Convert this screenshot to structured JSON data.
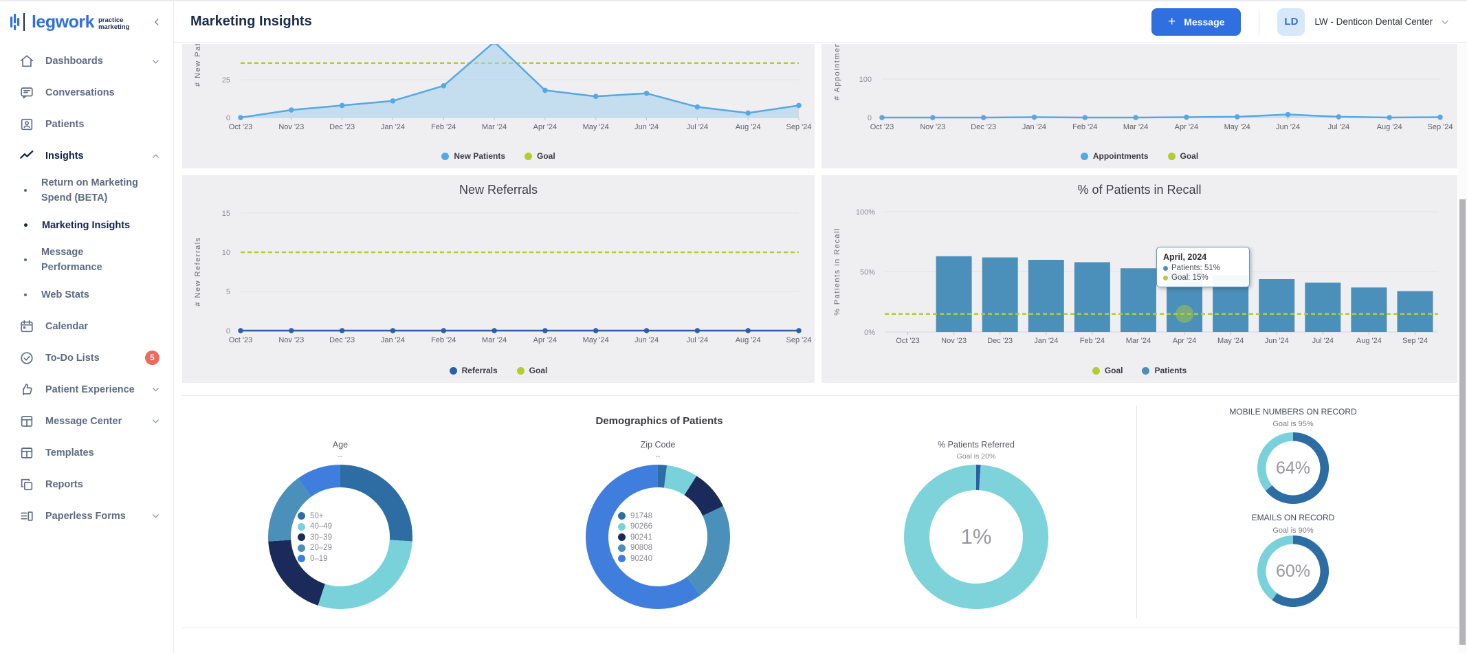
{
  "brand": {
    "name": "legwork",
    "tagline_line1": "practice",
    "tagline_line2": "marketing"
  },
  "header": {
    "title": "Marketing Insights",
    "message_button_plus": "+",
    "message_button": "Message",
    "account_initials": "LD",
    "account_name": "LW - Denticon Dental Center"
  },
  "sidebar": {
    "items": [
      {
        "label": "Dashboards",
        "icon": "home",
        "chevron": "down"
      },
      {
        "label": "Conversations",
        "icon": "chat"
      },
      {
        "label": "Patients",
        "icon": "patient-card"
      },
      {
        "label": "Insights",
        "icon": "insights",
        "chevron": "up",
        "active": true
      },
      {
        "label": "Return on Marketing Spend (BETA)",
        "sub": true
      },
      {
        "label": "Marketing Insights",
        "sub": true,
        "active": true
      },
      {
        "label": "Message Performance",
        "sub": true
      },
      {
        "label": "Web Stats",
        "sub": true
      },
      {
        "label": "Calendar",
        "icon": "calendar"
      },
      {
        "label": "To-Do Lists",
        "icon": "check-circle",
        "badge": "5"
      },
      {
        "label": "Patient Experience",
        "icon": "thumbs-up",
        "chevron": "down"
      },
      {
        "label": "Message Center",
        "icon": "grid",
        "chevron": "down"
      },
      {
        "label": "Templates",
        "icon": "grid"
      },
      {
        "label": "Reports",
        "icon": "copy"
      },
      {
        "label": "Paperless Forms",
        "icon": "list-panel",
        "chevron": "down"
      }
    ]
  },
  "colors": {
    "accent_blue": "#2f6fe0",
    "navy": "#1b2b4e",
    "panel_bg": "#efeff1",
    "goal_green": "#b2cc34",
    "line_blue": "#55a8e2",
    "referral_blue": "#2b5fa8",
    "bar_blue": "#4b90ba",
    "badge_red": "#ee6a5e",
    "teal": "#7ed3da",
    "gauge_blue": "#2d6da3"
  },
  "demographics": {
    "title": "Demographics of Patients"
  },
  "chart_data": [
    {
      "id": "new_patients",
      "type": "line",
      "categories": [
        "Oct '23",
        "Nov '23",
        "Dec '23",
        "Jan '24",
        "Feb '24",
        "Mar '24",
        "Apr '24",
        "May '24",
        "Jun '24",
        "Jul '24",
        "Aug '24",
        "Sep '24"
      ],
      "series": [
        {
          "name": "New Patients",
          "values": [
            0,
            5,
            8,
            11,
            21,
            50,
            18,
            14,
            16,
            7,
            3,
            8
          ],
          "color": "#55a8e2",
          "area": "rgba(160,208,238,0.55)"
        }
      ],
      "goal": 36,
      "goal_color": "#b2cc34",
      "ylabel": "# New Patients",
      "yticks": [
        {
          "v": 0,
          "label": "0"
        },
        {
          "v": 25,
          "label": "25"
        }
      ],
      "legend": [
        {
          "label": "New Patients",
          "color": "#55a8e2"
        },
        {
          "label": "Goal",
          "color": "#b2cc34"
        }
      ]
    },
    {
      "id": "appointments",
      "type": "line",
      "categories": [
        "Oct '23",
        "Nov '23",
        "Dec '23",
        "Jan '24",
        "Feb '24",
        "Mar '24",
        "Apr '24",
        "May '24",
        "Jun '24",
        "Jul '24",
        "Aug '24",
        "Sep '24"
      ],
      "series": [
        {
          "name": "Appointments",
          "values": [
            0,
            0,
            0,
            1,
            0,
            0,
            1,
            2,
            8,
            2,
            0,
            1
          ],
          "color": "#55a8e2",
          "area": "rgba(160,208,238,0.45)"
        }
      ],
      "ylabel": "# Appointments",
      "yticks": [
        {
          "v": 0,
          "label": "0"
        },
        {
          "v": 100,
          "label": "100"
        }
      ],
      "legend": [
        {
          "label": "Appointments",
          "color": "#55a8e2"
        },
        {
          "label": "Goal",
          "color": "#b2cc34"
        }
      ]
    },
    {
      "id": "new_referrals",
      "type": "line",
      "title": "New Referrals",
      "categories": [
        "Oct '23",
        "Nov '23",
        "Dec '23",
        "Jan '24",
        "Feb '24",
        "Mar '24",
        "Apr '24",
        "May '24",
        "Jun '24",
        "Jul '24",
        "Aug '24",
        "Sep '24"
      ],
      "series": [
        {
          "name": "Referrals",
          "values": [
            0,
            0,
            0,
            0,
            0,
            0,
            0,
            0,
            0,
            0,
            0,
            0
          ],
          "color": "#2b5fa8"
        }
      ],
      "goal": 10,
      "goal_color": "#b2cc34",
      "ylabel": "# New Referrals",
      "yticks": [
        {
          "v": 0,
          "label": "0"
        },
        {
          "v": 5,
          "label": "5"
        },
        {
          "v": 10,
          "label": "10"
        },
        {
          "v": 15,
          "label": "15"
        }
      ],
      "legend": [
        {
          "label": "Referrals",
          "color": "#2b5fa8"
        },
        {
          "label": "Goal",
          "color": "#b2cc34"
        }
      ]
    },
    {
      "id": "recall",
      "type": "bar",
      "title": "% of Patients in Recall",
      "categories": [
        "Oct '23",
        "Nov '23",
        "Dec '23",
        "Jan '24",
        "Feb '24",
        "Mar '24",
        "Apr '24",
        "May '24",
        "Jun '24",
        "Jul '24",
        "Aug '24",
        "Sep '24"
      ],
      "values": [
        0,
        63,
        62,
        60,
        58,
        53,
        51,
        47,
        44,
        41,
        37,
        34
      ],
      "bar_color": "#4b90ba",
      "goal": 15,
      "goal_color": "#b2cc34",
      "highlight_index": 6,
      "ylabel": "% Patients in Recall",
      "yticks": [
        {
          "v": 0,
          "label": "0%"
        },
        {
          "v": 50,
          "label": "50%"
        },
        {
          "v": 100,
          "label": "100%"
        }
      ],
      "legend": [
        {
          "label": "Goal",
          "color": "#b2cc34"
        },
        {
          "label": "Patients",
          "color": "#4b90ba"
        }
      ],
      "tooltip": {
        "title": "April, 2024",
        "rows": [
          {
            "text": "Patients: 51%",
            "color": "#4b90ba"
          },
          {
            "text": "Goal: 15%",
            "color": "#b2cc34"
          }
        ]
      }
    },
    {
      "id": "age_donut",
      "type": "pie",
      "title": "Age",
      "subtitle": "--",
      "segments": [
        {
          "label": "50+",
          "value": 26,
          "color": "#2d6da3"
        },
        {
          "label": "40–49",
          "value": 29,
          "color": "#79d2da"
        },
        {
          "label": "30–39",
          "value": 19,
          "color": "#1a2a5b"
        },
        {
          "label": "20–29",
          "value": 16,
          "color": "#4b90ba"
        },
        {
          "label": "0–19",
          "value": 10,
          "color": "#3f7edd"
        }
      ]
    },
    {
      "id": "zip_donut",
      "type": "pie",
      "title": "Zip Code",
      "subtitle": "--",
      "segments": [
        {
          "label": "91748",
          "value": 2,
          "color": "#2d6da3"
        },
        {
          "label": "90266",
          "value": 7,
          "color": "#79d2da"
        },
        {
          "label": "90241",
          "value": 9,
          "color": "#1a2a5b"
        },
        {
          "label": "90808",
          "value": 22,
          "color": "#4b90ba"
        },
        {
          "label": "90240",
          "value": 60,
          "color": "#3f7edd"
        }
      ]
    },
    {
      "id": "referred_donut",
      "type": "pie",
      "title": "% Patients Referred",
      "subtitle": "Goal is 20%",
      "center_label": "1%",
      "segments": [
        {
          "value": 1,
          "color": "#2b5fa8"
        },
        {
          "value": 99,
          "color": "#7ed3da"
        }
      ]
    },
    {
      "id": "mobile_gauge",
      "type": "pie",
      "title": "MOBILE NUMBERS ON RECORD",
      "subtitle": "Goal is 95%",
      "value": 64,
      "center_label": "64%",
      "progress_color": "#2d6da3",
      "track_color": "#79d2da"
    },
    {
      "id": "emails_gauge",
      "type": "pie",
      "title": "EMAILS ON RECORD",
      "subtitle": "Goal is 90%",
      "value": 60,
      "center_label": "60%",
      "progress_color": "#2d6da3",
      "track_color": "#79d2da"
    }
  ]
}
